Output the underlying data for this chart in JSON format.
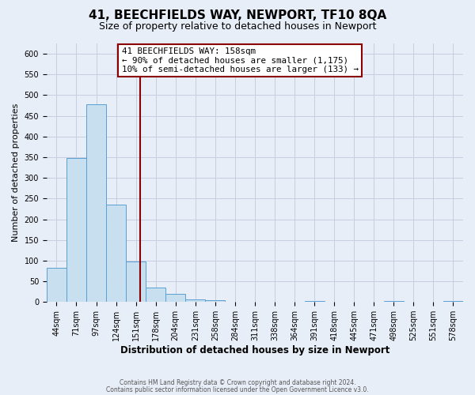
{
  "title": "41, BEECHFIELDS WAY, NEWPORT, TF10 8QA",
  "subtitle": "Size of property relative to detached houses in Newport",
  "xlabel": "Distribution of detached houses by size in Newport",
  "ylabel": "Number of detached properties",
  "footer_line1": "Contains HM Land Registry data © Crown copyright and database right 2024.",
  "footer_line2": "Contains public sector information licensed under the Open Government Licence v3.0.",
  "bin_labels": [
    "44sqm",
    "71sqm",
    "97sqm",
    "124sqm",
    "151sqm",
    "178sqm",
    "204sqm",
    "231sqm",
    "258sqm",
    "284sqm",
    "311sqm",
    "338sqm",
    "364sqm",
    "391sqm",
    "418sqm",
    "445sqm",
    "471sqm",
    "498sqm",
    "525sqm",
    "551sqm",
    "578sqm"
  ],
  "bar_heights": [
    83,
    348,
    477,
    236,
    98,
    35,
    19,
    7,
    5,
    0,
    0,
    0,
    0,
    2,
    0,
    0,
    0,
    2,
    0,
    0,
    2
  ],
  "bar_color": "#c8dff0",
  "bar_edge_color": "#5a9fd4",
  "vline_x": 4.72,
  "vline_color": "#8b0000",
  "annotation_title": "41 BEECHFIELDS WAY: 158sqm",
  "annotation_line1": "← 90% of detached houses are smaller (1,175)",
  "annotation_line2": "10% of semi-detached houses are larger (133) →",
  "annotation_box_facecolor": "#ffffff",
  "annotation_box_edgecolor": "#8b0000",
  "ylim": [
    0,
    625
  ],
  "yticks": [
    0,
    50,
    100,
    150,
    200,
    250,
    300,
    350,
    400,
    450,
    500,
    550,
    600
  ],
  "fig_bg": "#e8eef8",
  "plot_bg": "#e8eef8",
  "grid_color": "#c5cee0",
  "title_fontsize": 11,
  "subtitle_fontsize": 9,
  "ylabel_fontsize": 8,
  "xlabel_fontsize": 8.5,
  "tick_fontsize": 7,
  "footer_fontsize": 5.5
}
